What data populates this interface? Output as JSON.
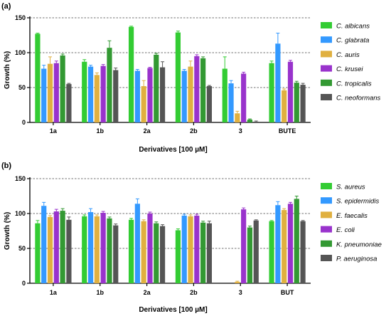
{
  "chart_data": [
    {
      "panel": "(a)",
      "type": "bar",
      "ylabel": "Growth (%)",
      "xlabel": "Derivatives [100 µM]",
      "ylim": [
        0,
        150
      ],
      "yticks": [
        0,
        50,
        100,
        150
      ],
      "grid": "dashed horizontal at 50, 100, 150",
      "legend_position": "right",
      "categories": [
        "1a",
        "1b",
        "2a",
        "2b",
        "3",
        "BUTE"
      ],
      "series": [
        {
          "name": "C. albicans",
          "color": "#33cc33",
          "values": [
            127,
            87,
            137,
            129,
            77,
            85
          ],
          "errors": [
            1,
            3,
            1,
            2,
            17,
            3
          ]
        },
        {
          "name": "C. glabrata",
          "color": "#3399ff",
          "values": [
            77,
            80,
            74,
            74,
            56,
            113
          ],
          "errors": [
            5,
            2,
            2,
            2,
            4,
            15
          ]
        },
        {
          "name": "C. auris",
          "color": "#e0b040",
          "values": [
            84,
            68,
            52,
            80,
            13,
            46
          ],
          "errors": [
            10,
            3,
            8,
            8,
            3,
            2
          ]
        },
        {
          "name": "C. krusei",
          "color": "#9933cc",
          "values": [
            85,
            81,
            78,
            95,
            70,
            87
          ],
          "errors": [
            3,
            2,
            1,
            2,
            2,
            2
          ]
        },
        {
          "name": "C. tropicalis",
          "color": "#339933",
          "values": [
            96,
            107,
            97,
            92,
            4,
            57
          ],
          "errors": [
            2,
            10,
            2,
            2,
            1,
            2
          ]
        },
        {
          "name": "C. neoformans",
          "color": "#555555",
          "values": [
            55,
            75,
            79,
            52,
            1,
            54
          ],
          "errors": [
            1,
            3,
            8,
            1,
            1,
            2
          ]
        }
      ]
    },
    {
      "panel": "(b)",
      "type": "bar",
      "ylabel": "Growth (%)",
      "xlabel": "Derivatives [100 µM]",
      "ylim": [
        0,
        150
      ],
      "yticks": [
        0,
        50,
        100,
        150
      ],
      "grid": "dashed horizontal at 50, 100, 150",
      "legend_position": "right",
      "categories": [
        "1a",
        "1b",
        "2a",
        "2b",
        "3",
        "BUT"
      ],
      "series": [
        {
          "name": "S. aureus",
          "color": "#33cc33",
          "values": [
            86,
            96,
            91,
            76,
            0,
            89
          ],
          "errors": [
            4,
            2,
            2,
            2,
            0,
            1
          ]
        },
        {
          "name": "S. epidermidis",
          "color": "#3399ff",
          "values": [
            111,
            102,
            114,
            97,
            0,
            112
          ],
          "errors": [
            5,
            5,
            7,
            2,
            0,
            5
          ]
        },
        {
          "name": "E. faecalis",
          "color": "#e0b040",
          "values": [
            95,
            96,
            89,
            96,
            2,
            105
          ],
          "errors": [
            2,
            2,
            2,
            2,
            1,
            2
          ]
        },
        {
          "name": "E. coli",
          "color": "#9933cc",
          "values": [
            103,
            101,
            100,
            97,
            106,
            114
          ],
          "errors": [
            3,
            2,
            2,
            2,
            2,
            2
          ]
        },
        {
          "name": "K. pneumoniae",
          "color": "#339933",
          "values": [
            104,
            93,
            86,
            87,
            80,
            121
          ],
          "errors": [
            3,
            2,
            2,
            2,
            2,
            4
          ]
        },
        {
          "name": "P. aeruginosa",
          "color": "#555555",
          "values": [
            91,
            83,
            82,
            86,
            90,
            89
          ],
          "errors": [
            4,
            2,
            2,
            3,
            1,
            1
          ]
        }
      ]
    }
  ]
}
